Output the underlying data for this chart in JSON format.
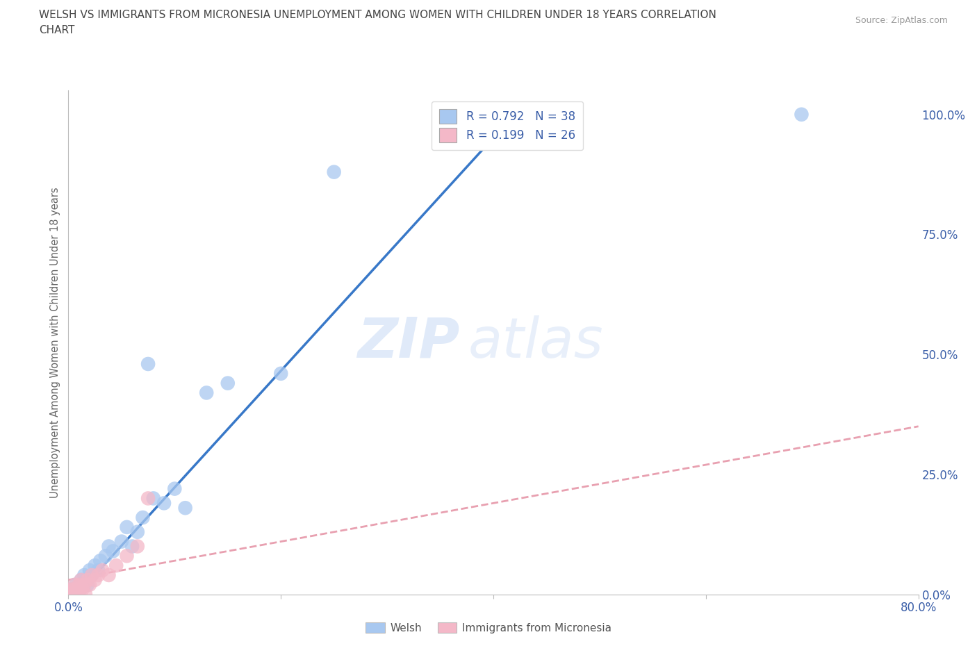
{
  "title": "WELSH VS IMMIGRANTS FROM MICRONESIA UNEMPLOYMENT AMONG WOMEN WITH CHILDREN UNDER 18 YEARS CORRELATION\nCHART",
  "source": "Source: ZipAtlas.com",
  "ylabel": "Unemployment Among Women with Children Under 18 years",
  "xlim": [
    0,
    0.8
  ],
  "ylim": [
    0,
    1.05
  ],
  "yticks": [
    0.0,
    0.25,
    0.5,
    0.75,
    1.0
  ],
  "ytick_labels": [
    "0.0%",
    "25.0%",
    "50.0%",
    "75.0%",
    "100.0%"
  ],
  "xticks": [
    0.0,
    0.2,
    0.4,
    0.6,
    0.8
  ],
  "xtick_labels": [
    "0.0%",
    "",
    "",
    "",
    "80.0%"
  ],
  "welsh_R": 0.792,
  "welsh_N": 38,
  "micronesia_R": 0.199,
  "micronesia_N": 26,
  "welsh_color": "#a8c8f0",
  "micronesia_color": "#f4b8c8",
  "welsh_line_color": "#3878c8",
  "micronesia_line_color": "#e8a0b0",
  "legend_text_color": "#3a5ea8",
  "watermark_zip": "ZIP",
  "watermark_atlas": "atlas",
  "background_color": "#ffffff",
  "grid_color": "#d8dff0",
  "welsh_x": [
    0.002,
    0.003,
    0.004,
    0.005,
    0.006,
    0.007,
    0.008,
    0.009,
    0.01,
    0.011,
    0.012,
    0.014,
    0.015,
    0.017,
    0.018,
    0.02,
    0.022,
    0.025,
    0.028,
    0.03,
    0.035,
    0.038,
    0.042,
    0.05,
    0.055,
    0.06,
    0.065,
    0.07,
    0.075,
    0.08,
    0.09,
    0.1,
    0.11,
    0.13,
    0.15,
    0.2,
    0.25,
    0.69
  ],
  "welsh_y": [
    0.0,
    0.01,
    0.0,
    0.01,
    0.0,
    0.02,
    0.01,
    0.0,
    0.02,
    0.01,
    0.03,
    0.02,
    0.04,
    0.03,
    0.02,
    0.05,
    0.04,
    0.06,
    0.05,
    0.07,
    0.08,
    0.1,
    0.09,
    0.11,
    0.14,
    0.1,
    0.13,
    0.16,
    0.48,
    0.2,
    0.19,
    0.22,
    0.18,
    0.42,
    0.44,
    0.46,
    0.88,
    1.0
  ],
  "micronesia_x": [
    0.001,
    0.002,
    0.003,
    0.004,
    0.005,
    0.006,
    0.007,
    0.008,
    0.009,
    0.01,
    0.011,
    0.012,
    0.013,
    0.015,
    0.016,
    0.018,
    0.02,
    0.022,
    0.025,
    0.028,
    0.032,
    0.038,
    0.045,
    0.055,
    0.065,
    0.075
  ],
  "micronesia_y": [
    0.0,
    0.0,
    0.01,
    0.0,
    0.01,
    0.02,
    0.0,
    0.01,
    0.0,
    0.02,
    0.01,
    0.03,
    0.01,
    0.02,
    0.0,
    0.03,
    0.02,
    0.04,
    0.03,
    0.04,
    0.05,
    0.04,
    0.06,
    0.08,
    0.1,
    0.2
  ],
  "welsh_line_x0": 0.0,
  "welsh_line_y0": -0.02,
  "welsh_line_x1": 0.42,
  "welsh_line_y1": 1.0,
  "micro_line_x0": 0.0,
  "micro_line_y0": 0.03,
  "micro_line_x1": 0.8,
  "micro_line_y1": 0.35
}
